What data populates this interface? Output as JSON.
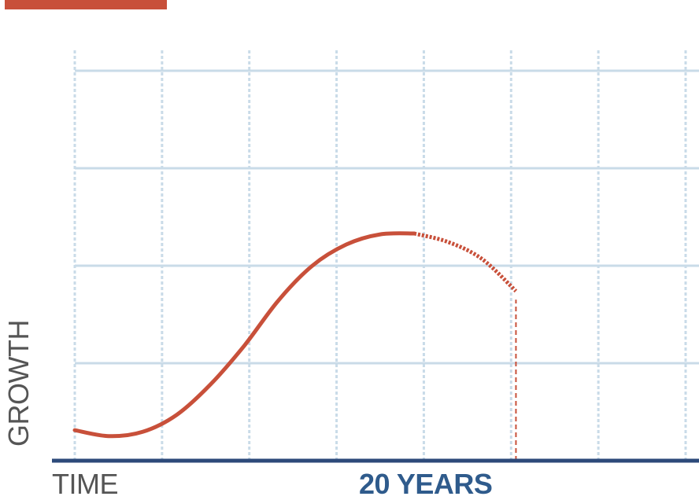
{
  "colors": {
    "accent": "#c8503a",
    "grid": "#c9dbe8",
    "axis": "#2d4a7a",
    "text_gray": "#555555",
    "text_blue": "#2f5b8c"
  },
  "chart_data": {
    "type": "line",
    "title": "",
    "xlabel": "TIME",
    "ylabel": "GROWTH",
    "xlim": [
      0,
      36
    ],
    "ylim": [
      0,
      4.6
    ],
    "grid": true,
    "series": [
      {
        "style": "solid",
        "x": [
          0,
          2,
          4,
          6,
          8,
          10,
          12,
          14,
          16,
          18,
          20
        ],
        "y": [
          0.36,
          0.29,
          0.34,
          0.54,
          0.9,
          1.36,
          1.89,
          2.3,
          2.55,
          2.67,
          2.68
        ]
      },
      {
        "style": "dotted",
        "x": [
          20,
          22,
          24,
          26
        ],
        "y": [
          2.68,
          2.58,
          2.38,
          2.0
        ]
      }
    ],
    "marker": {
      "x": 26,
      "label": "20 YEARS",
      "from_y": 0,
      "to_y": 1.9
    }
  }
}
